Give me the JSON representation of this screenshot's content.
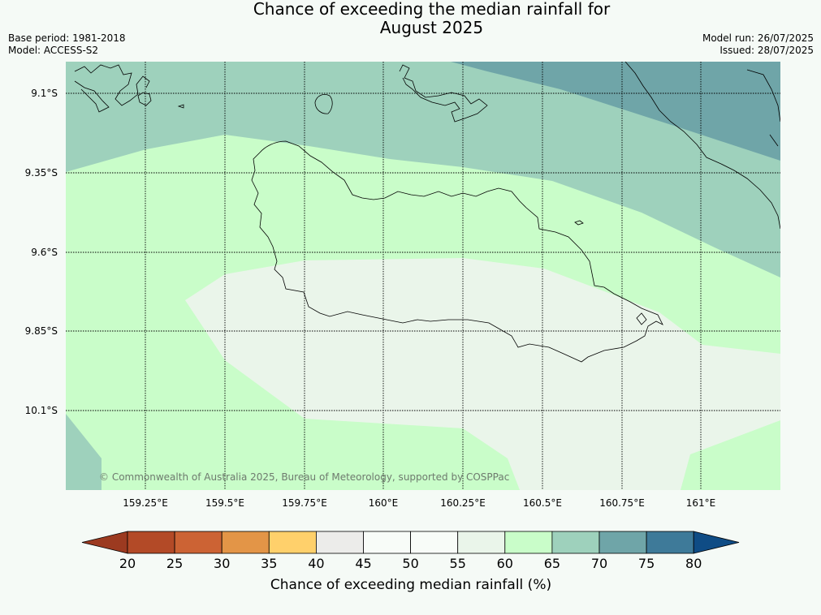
{
  "header": {
    "title_line1": "Chance of exceeding the median rainfall for",
    "title_line2": "August 2025",
    "base_period": "Base period: 1981-2018",
    "model": "Model: ACCESS-S2",
    "model_run": "Model run: 26/07/2025",
    "issued": "Issued: 28/07/2025"
  },
  "map": {
    "lat_labels": [
      "9.1°S",
      "9.35°S",
      "9.6°S",
      "9.85°S",
      "10.1°S"
    ],
    "lon_labels": [
      "159.25°E",
      "159.5°E",
      "159.75°E",
      "160°E",
      "160.25°E",
      "160.5°E",
      "160.75°E",
      "161°E"
    ],
    "copyright": "© Commonwealth of Australia 2025, Bureau of Meteorology, supported by COSPPac",
    "zone_colors": {
      "band_70_75": "#6fa5a8",
      "band_65_70": "#9ed1bc",
      "band_60_65": "#c9fdc9",
      "band_55_60": "#eaf5ea",
      "coast": "#000000",
      "grid": "#000000"
    }
  },
  "colorbar": {
    "title": "Chance of exceeding median rainfall (%)",
    "ticks": [
      "20",
      "25",
      "30",
      "35",
      "40",
      "45",
      "50",
      "55",
      "60",
      "65",
      "70",
      "75",
      "80"
    ],
    "colors": [
      "#9c3a20",
      "#b34a27",
      "#cc6334",
      "#e39547",
      "#ffd06b",
      "#ececea",
      "#f8fcf8",
      "#f8fcf8",
      "#eaf5ea",
      "#c9fdc9",
      "#9ed1bc",
      "#6fa5a8",
      "#3e7a99",
      "#0f4c85"
    ]
  }
}
